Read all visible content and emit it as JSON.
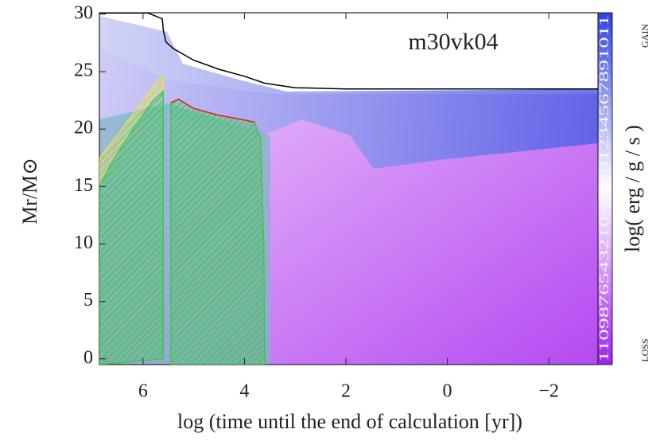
{
  "chart_data": {
    "type": "kippenhahn",
    "title": "m30vk04",
    "xlabel": "log (time until the end of calculation [yr])",
    "ylabel": "Mr/M⊙",
    "xlim": [
      6.86,
      -2.97
    ],
    "ylim": [
      -0.5,
      30.13
    ],
    "xticks": [
      6,
      4,
      2,
      {
        "value": 0,
        "label": "0"
      },
      {
        "value": -2,
        "label": "−2"
      }
    ],
    "yticks": [
      0,
      5,
      10,
      15,
      20,
      25,
      30
    ],
    "colorbar_label": "log( erg / g / s )",
    "colorbar_ticks": "1109876543210-1.-101234567891011",
    "colorbar_top": "GAIN",
    "colorbar_bottom": "LOSS",
    "lines": [
      {
        "color": "#000000",
        "x": [
          6.86,
          5.9,
          5.62,
          5.6,
          5.55,
          5.4,
          5.0,
          4.5,
          4.0,
          3.6,
          3.0,
          2.0,
          0.0,
          -2.97
        ],
        "y": [
          30.1,
          30.1,
          29.6,
          28.6,
          27.6,
          27.0,
          26.0,
          25.2,
          24.6,
          24.0,
          23.6,
          23.5,
          23.5,
          23.5
        ]
      },
      {
        "color": "#dd2222",
        "x": [
          5.45,
          5.3,
          5.0,
          4.5,
          4.0,
          3.8
        ],
        "y": [
          22.3,
          22.6,
          21.8,
          21.2,
          20.8,
          20.6
        ]
      }
    ],
    "regions": [
      {
        "color": "#e8e840",
        "x": [
          6.86,
          6.5,
          6.0,
          5.7,
          5.6,
          5.6,
          5.8,
          6.2,
          6.6,
          6.86
        ],
        "y": [
          17.5,
          19.5,
          22.5,
          24.3,
          24.6,
          23.3,
          22.5,
          20.0,
          17.2,
          15.0
        ]
      },
      {
        "color": "#33cc33",
        "x": [
          6.86,
          6.6,
          6.2,
          5.8,
          5.6,
          5.6,
          6.86
        ],
        "y": [
          15.0,
          17.2,
          20.0,
          22.5,
          23.3,
          0.0,
          -0.5
        ]
      },
      {
        "color": "#33cc33",
        "x": [
          5.45,
          5.3,
          5.0,
          4.5,
          4.0,
          3.8,
          3.68,
          3.62,
          3.6,
          5.45
        ],
        "y": [
          22.3,
          22.6,
          21.8,
          21.2,
          20.8,
          20.6,
          19.2,
          10.0,
          -0.5,
          -0.5
        ]
      }
    ]
  }
}
